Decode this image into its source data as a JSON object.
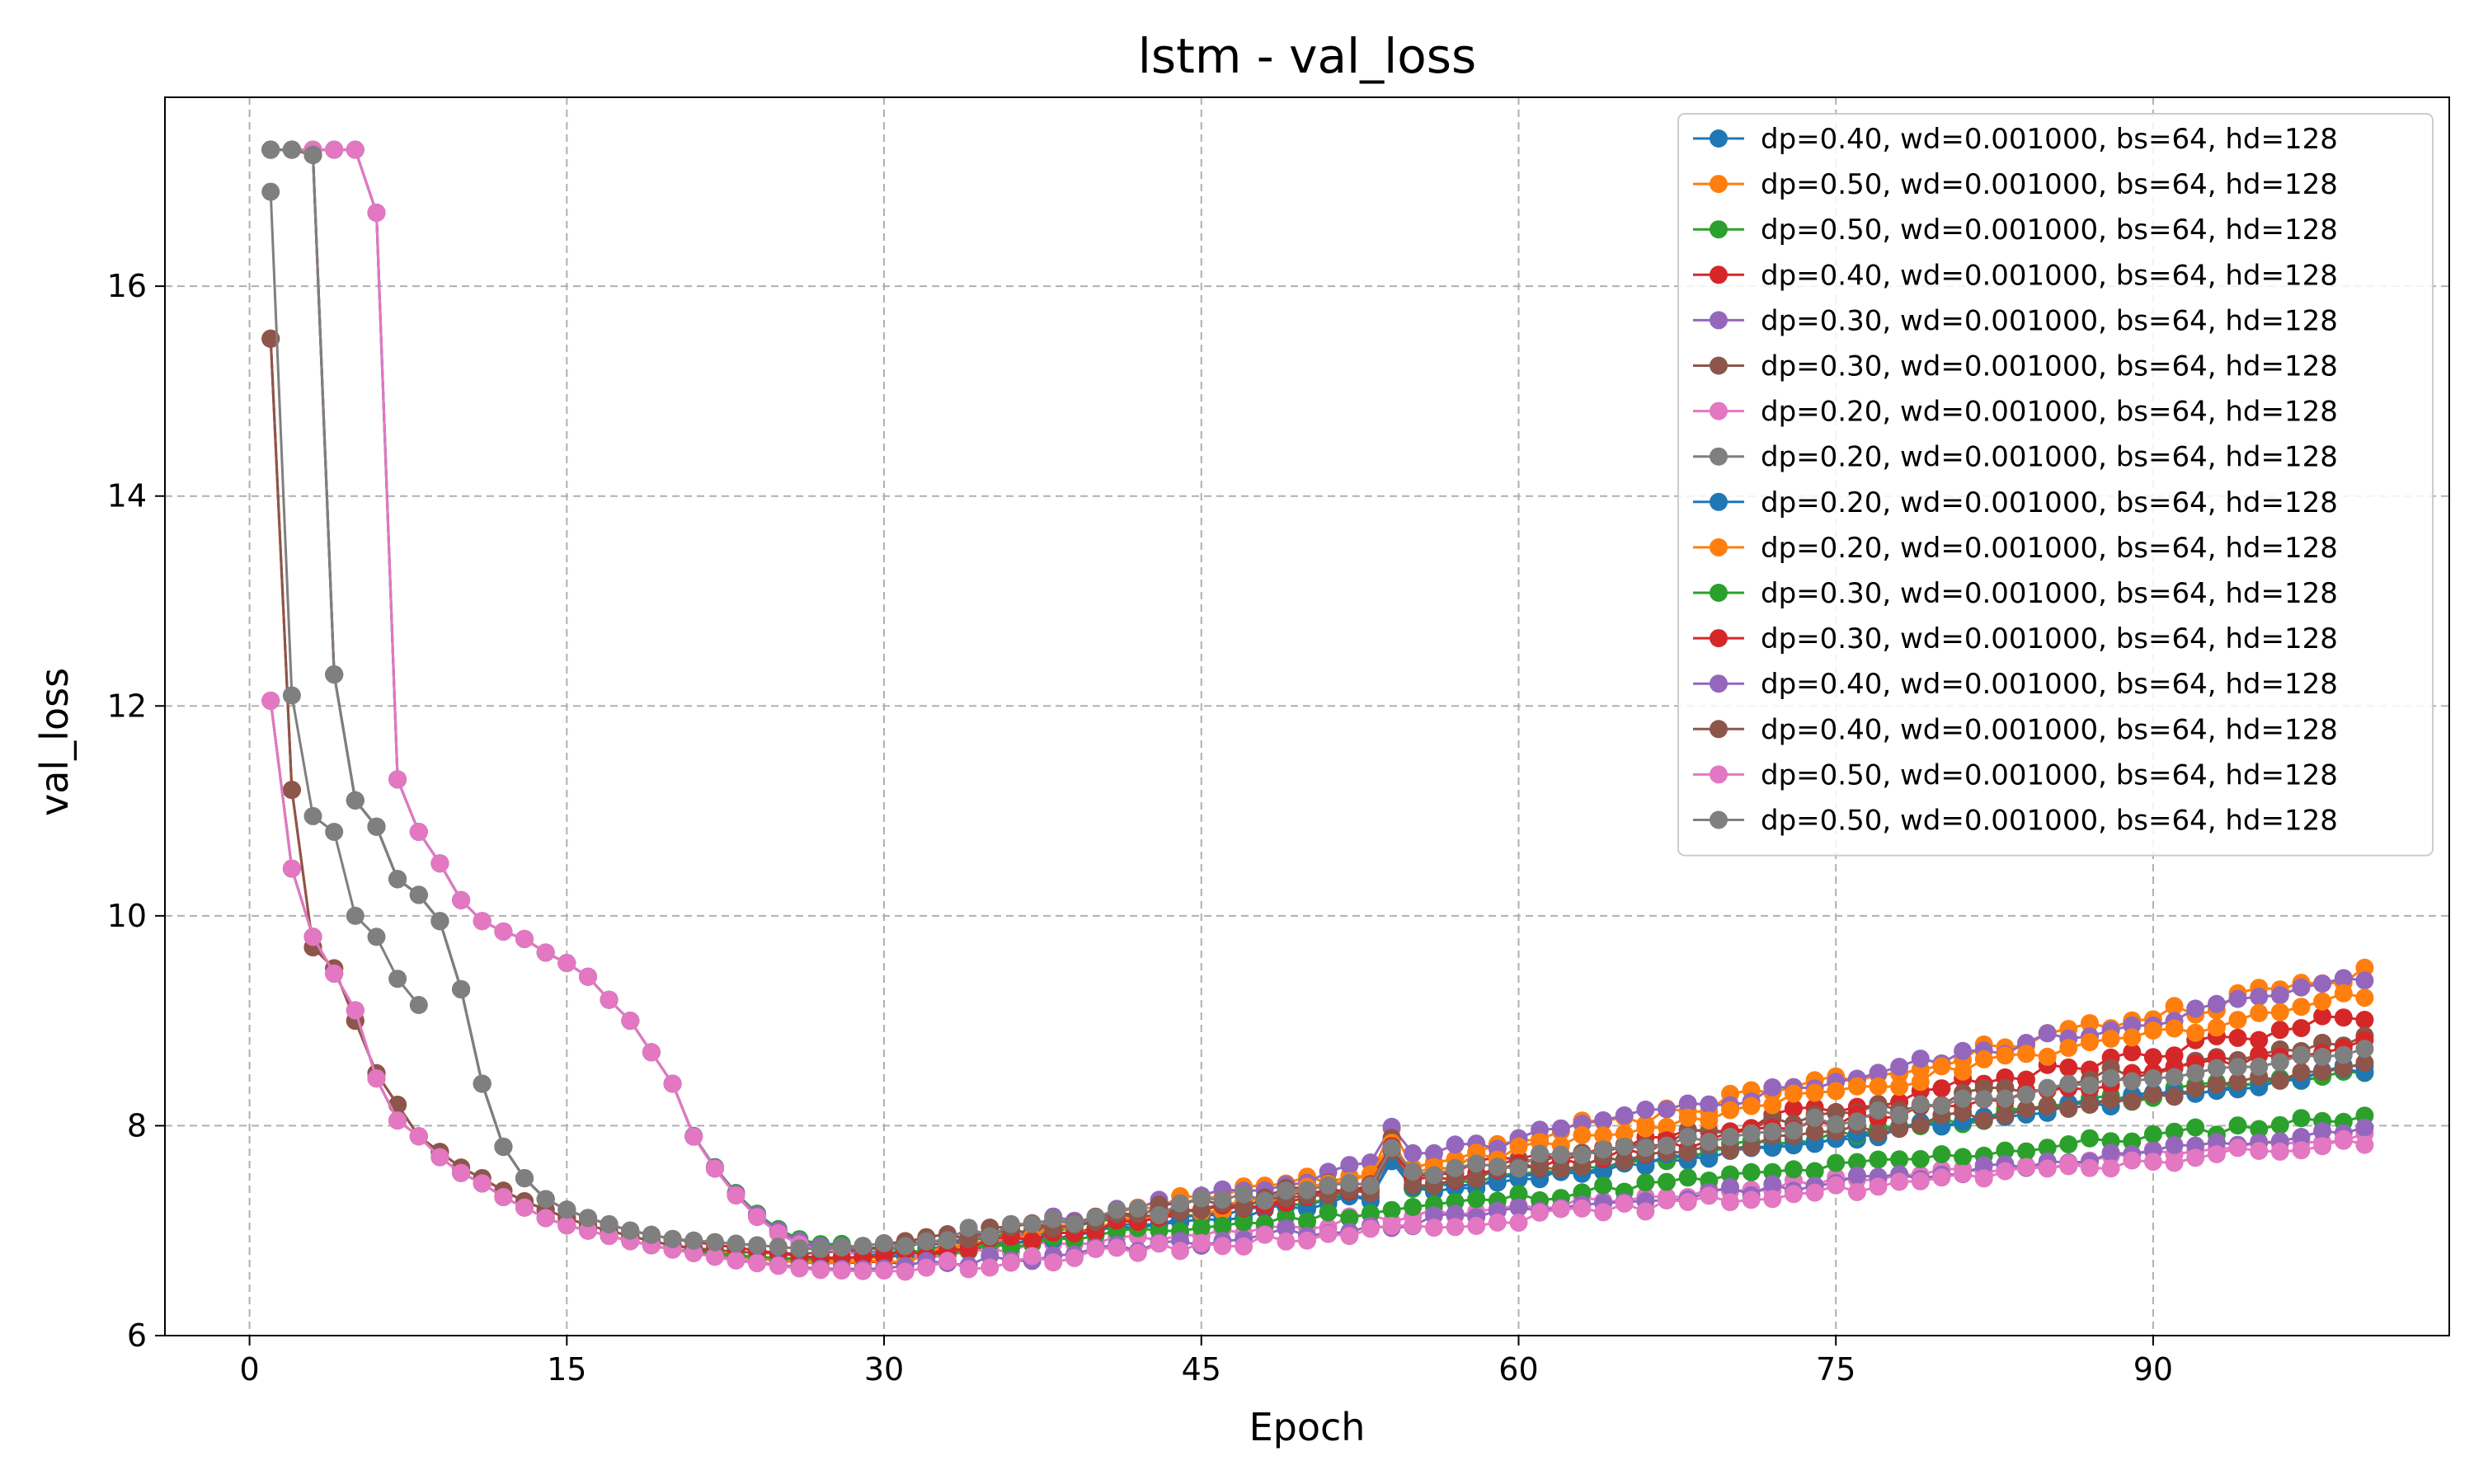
{
  "chart_data": {
    "type": "line",
    "title": "lstm - val_loss",
    "xlabel": "Epoch",
    "ylabel": "val_loss",
    "xlim": [
      -4,
      104
    ],
    "ylim": [
      6,
      17.8
    ],
    "xticks": [
      0,
      15,
      30,
      45,
      60,
      75,
      90
    ],
    "yticks": [
      6,
      8,
      10,
      12,
      14,
      16
    ],
    "grid": true,
    "grid_style": "dashed",
    "marker": "circle",
    "legend_position": "top-right",
    "series": [
      {
        "name": "dp=0.40, wd=0.001000, bs=64, hd=128",
        "color": "#1f77b4",
        "shape": "slowA",
        "x_end": 100,
        "min_val": 6.72,
        "final": 8.55,
        "jit": 0.05
      },
      {
        "name": "dp=0.50, wd=0.001000, bs=64, hd=128",
        "color": "#ff7f0e",
        "shape": "fastA",
        "x_end": 100,
        "min_val": 6.72,
        "final": 9.45,
        "jit": 0.08
      },
      {
        "name": "dp=0.50, wd=0.001000, bs=64, hd=128",
        "color": "#2ca02c",
        "shape": "slowA",
        "x_end": 100,
        "min_val": 6.78,
        "final": 8.55,
        "jit": 0.05
      },
      {
        "name": "dp=0.40, wd=0.001000, bs=64, hd=128",
        "color": "#d62728",
        "shape": "fastA",
        "x_end": 100,
        "min_val": 6.68,
        "final": 9.05,
        "jit": 0.07
      },
      {
        "name": "dp=0.30, wd=0.001000, bs=64, hd=128",
        "color": "#9467bd",
        "shape": "slowA",
        "x_end": 100,
        "min_val": 6.75,
        "final": 9.4,
        "jit": 0.07
      },
      {
        "name": "dp=0.30, wd=0.001000, bs=64, hd=128",
        "color": "#8c564b",
        "shape": "fastA",
        "x_end": 100,
        "min_val": 6.82,
        "final": 8.85,
        "jit": 0.06
      },
      {
        "name": "dp=0.20, wd=0.001000, bs=64, hd=128",
        "color": "#e377c2",
        "shape": "slowA",
        "x_end": 100,
        "min_val": 6.7,
        "final": 7.9,
        "jit": 0.05
      },
      {
        "name": "dp=0.20, wd=0.001000, bs=64, hd=128",
        "color": "#7f7f7f",
        "shape": "short",
        "x_end": 8,
        "min_val": 9.1,
        "final": 9.1,
        "jit": 0.0
      },
      {
        "name": "dp=0.20, wd=0.001000, bs=64, hd=128",
        "color": "#1f77b4",
        "shape": "midB",
        "x_end": 100,
        "min_val": 6.68,
        "final": 8.55,
        "jit": 0.05
      },
      {
        "name": "dp=0.20, wd=0.001000, bs=64, hd=128",
        "color": "#ff7f0e",
        "shape": "fastC",
        "x_end": 100,
        "min_val": 6.7,
        "final": 9.25,
        "jit": 0.07
      },
      {
        "name": "dp=0.30, wd=0.001000, bs=64, hd=128",
        "color": "#2ca02c",
        "shape": "fastC",
        "x_end": 100,
        "min_val": 6.75,
        "final": 8.1,
        "jit": 0.05
      },
      {
        "name": "dp=0.30, wd=0.001000, bs=64, hd=128",
        "color": "#d62728",
        "shape": "midB",
        "x_end": 100,
        "min_val": 6.68,
        "final": 8.8,
        "jit": 0.06
      },
      {
        "name": "dp=0.40, wd=0.001000, bs=64, hd=128",
        "color": "#9467bd",
        "shape": "fastC",
        "x_end": 100,
        "min_val": 6.62,
        "final": 7.95,
        "jit": 0.05
      },
      {
        "name": "dp=0.40, wd=0.001000, bs=64, hd=128",
        "color": "#8c564b",
        "shape": "midB",
        "x_end": 100,
        "min_val": 6.8,
        "final": 8.55,
        "jit": 0.05
      },
      {
        "name": "dp=0.50, wd=0.001000, bs=64, hd=128",
        "color": "#e377c2",
        "shape": "fastC",
        "x_end": 100,
        "min_val": 6.6,
        "final": 7.85,
        "jit": 0.05
      },
      {
        "name": "dp=0.50, wd=0.001000, bs=64, hd=128",
        "color": "#7f7f7f",
        "shape": "midB",
        "x_end": 100,
        "min_val": 6.8,
        "final": 8.75,
        "jit": 0.06
      }
    ]
  }
}
